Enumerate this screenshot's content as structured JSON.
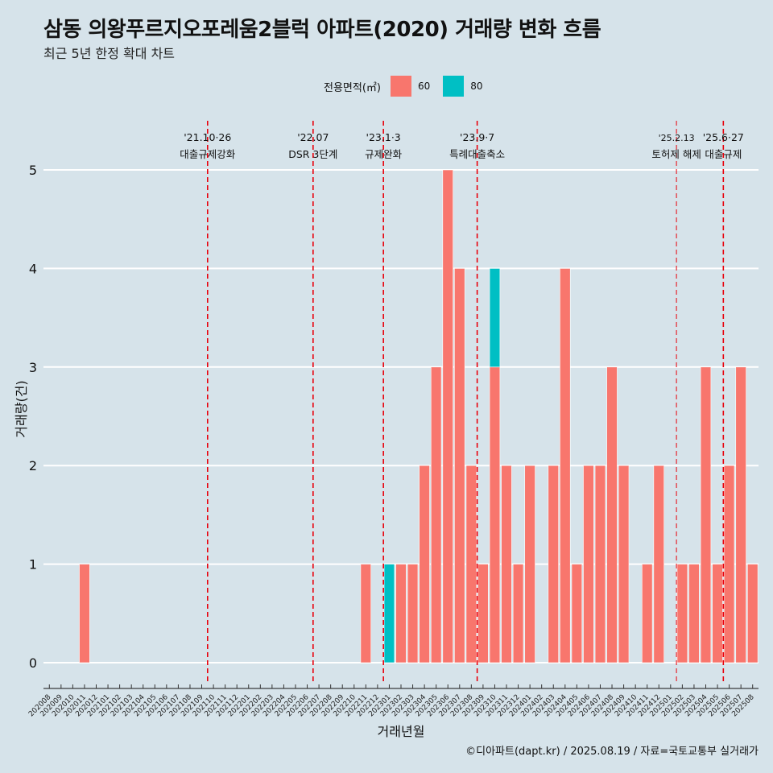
{
  "header": {
    "title": "삼동 의왕푸르지오포레움2블럭 아파트(2020) 거래량 변화 흐름",
    "subtitle": "최근 5년 한정 확대 차트"
  },
  "legend": {
    "title": "전용면적(㎡)",
    "items": [
      {
        "label": "60",
        "color": "#f8766d"
      },
      {
        "label": "80",
        "color": "#00bfc4"
      }
    ]
  },
  "caption": "©디아파트(dapt.kr) / 2025.08.19 / 자료=국토교통부 실거래가",
  "chart_data": {
    "type": "bar",
    "stacked": true,
    "xlabel": "거래년월",
    "ylabel": "거래량(건)",
    "ylim": [
      0,
      5
    ],
    "yticks": [
      0,
      1,
      2,
      3,
      4,
      5
    ],
    "grid": "horizontal",
    "legend_position": "top",
    "categories": [
      "202008",
      "202009",
      "202010",
      "202011",
      "202012",
      "202101",
      "202102",
      "202103",
      "202104",
      "202105",
      "202106",
      "202107",
      "202108",
      "202109",
      "202110",
      "202111",
      "202112",
      "202201",
      "202202",
      "202203",
      "202204",
      "202205",
      "202206",
      "202207",
      "202208",
      "202209",
      "202210",
      "202211",
      "202212",
      "202301",
      "202302",
      "202303",
      "202304",
      "202305",
      "202306",
      "202307",
      "202308",
      "202309",
      "202310",
      "202311",
      "202312",
      "202401",
      "202402",
      "202403",
      "202404",
      "202405",
      "202406",
      "202407",
      "202408",
      "202409",
      "202410",
      "202411",
      "202412",
      "202501",
      "202502",
      "202503",
      "202504",
      "202505",
      "202506",
      "202507",
      "202508"
    ],
    "series": [
      {
        "name": "60",
        "color": "#f8766d",
        "values": [
          0,
          0,
          0,
          1,
          0,
          0,
          0,
          0,
          0,
          0,
          0,
          0,
          0,
          0,
          0,
          0,
          0,
          0,
          0,
          0,
          0,
          0,
          0,
          0,
          0,
          0,
          0,
          1,
          0,
          0,
          1,
          1,
          2,
          3,
          5,
          4,
          2,
          1,
          3,
          2,
          1,
          2,
          0,
          2,
          4,
          1,
          2,
          2,
          3,
          2,
          0,
          1,
          2,
          0,
          1,
          1,
          3,
          1,
          2,
          3,
          1
        ]
      },
      {
        "name": "80",
        "color": "#00bfc4",
        "values": [
          0,
          0,
          0,
          0,
          0,
          0,
          0,
          0,
          0,
          0,
          0,
          0,
          0,
          0,
          0,
          0,
          0,
          0,
          0,
          0,
          0,
          0,
          0,
          0,
          0,
          0,
          0,
          0,
          0,
          1,
          0,
          0,
          0,
          0,
          0,
          0,
          0,
          0,
          1,
          0,
          0,
          0,
          0,
          0,
          0,
          0,
          0,
          0,
          0,
          0,
          0,
          0,
          0,
          0,
          0,
          0,
          0,
          0,
          0,
          0,
          0
        ]
      }
    ],
    "annotations": [
      {
        "date": "'21.10·26",
        "text": "대출규제강화",
        "at": "202110"
      },
      {
        "date": "'22.07",
        "text": "DSR 3단계",
        "at": "202207"
      },
      {
        "date": "'23.1·3",
        "text": "규제완화",
        "at": "202301"
      },
      {
        "date": "'23.9·7",
        "text": "특례대출축소",
        "at": "202309"
      },
      {
        "date": "'25.2.13",
        "text": "토허제 해제",
        "at": "202502",
        "small": true
      },
      {
        "date": "'25.6·27",
        "text": "대출규제",
        "at": "202506"
      }
    ]
  }
}
